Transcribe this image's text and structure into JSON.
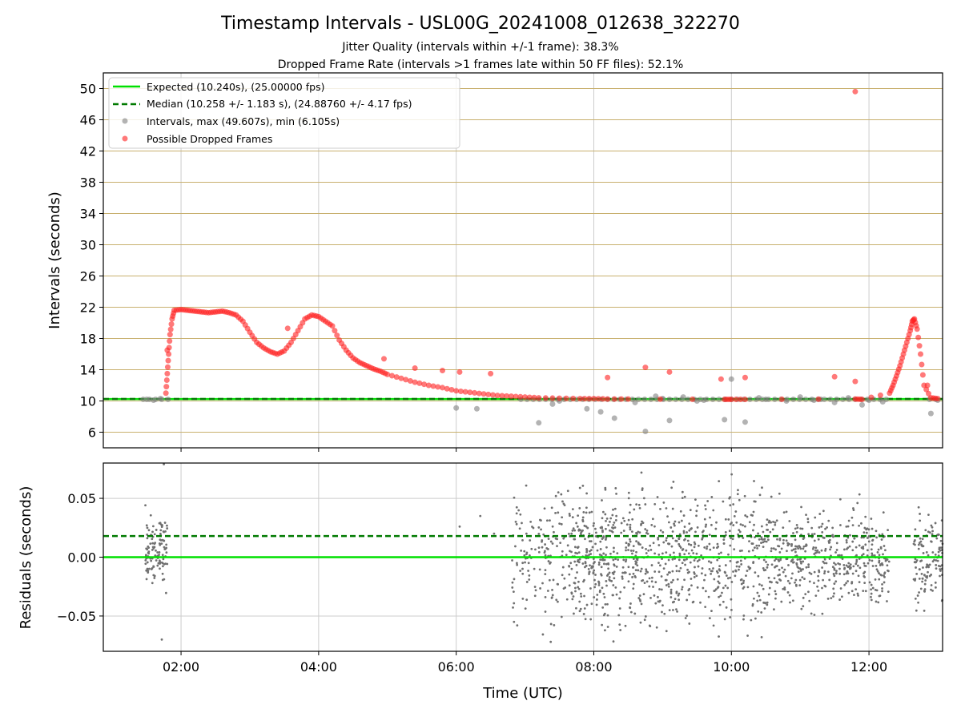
{
  "chart_data": [
    {
      "type": "scatter",
      "title": "Timestamp Intervals - USL00G_20241008_012638_322270",
      "subtitle_lines": [
        "Jitter Quality (intervals within +/-1 frame): 38.3%",
        "Dropped Frame Rate (intervals >1 frames late within 50 FF files): 52.1%"
      ],
      "ylabel": "Intervals (seconds)",
      "xlim_hours": [
        0.87,
        13.07
      ],
      "ylim": [
        4,
        52
      ],
      "ytick_values": [
        6,
        10,
        14,
        18,
        22,
        26,
        30,
        34,
        38,
        42,
        46,
        50
      ],
      "ytick_labels": [
        "6",
        "10",
        "14",
        "18",
        "22",
        "26",
        "30",
        "34",
        "38",
        "42",
        "46",
        "50"
      ],
      "grid": true,
      "horizontal_grid_color": "#c8b06e",
      "legend_position": "upper-left",
      "legend": [
        {
          "label": "Expected (10.240s), (25.00000 fps)",
          "style": "line",
          "color": "#00e000"
        },
        {
          "label": "Median (10.258 +/- 1.183 s), (24.88760 +/- 4.17 fps)",
          "style": "dashed",
          "color": "#007a00"
        },
        {
          "label": "Intervals, max (49.607s), min (6.105s)",
          "style": "marker",
          "color": "#808080"
        },
        {
          "label": "Possible Dropped Frames",
          "style": "marker",
          "color": "#ff2020"
        }
      ],
      "reference_lines": {
        "expected": 10.24,
        "median": 10.258
      },
      "series": [
        {
          "name": "Possible Dropped Frames",
          "color": "#ff2020",
          "x_hours": [
            1.78,
            1.8,
            1.82,
            1.84,
            1.87,
            1.9,
            2.0,
            2.1,
            2.2,
            2.3,
            2.4,
            2.5,
            2.6,
            2.7,
            2.8,
            2.9,
            3.0,
            3.1,
            3.2,
            3.3,
            3.4,
            3.5,
            3.6,
            3.7,
            3.8,
            3.9,
            4.0,
            4.1,
            4.2,
            4.3,
            4.4,
            4.5,
            4.6,
            4.7,
            4.8,
            4.9,
            5.0,
            5.2,
            5.4,
            5.6,
            5.8,
            6.0,
            6.2,
            6.4,
            6.6,
            6.8,
            7.0,
            7.2,
            7.5,
            7.8,
            8.0,
            8.2,
            8.5,
            9.9,
            10.0,
            10.2,
            11.8,
            11.9,
            12.3,
            12.35,
            12.4,
            12.45,
            12.5,
            12.55,
            12.6,
            12.63,
            12.66,
            12.7,
            12.75,
            12.8,
            12.9,
            13.0,
            1.8,
            3.55,
            4.95,
            5.4,
            5.8,
            6.05,
            6.5,
            8.2,
            8.75,
            9.1,
            9.85,
            10.2,
            11.5,
            11.8,
            12.85
          ],
          "y": [
            11.0,
            13.5,
            16.0,
            18.5,
            20.5,
            21.6,
            21.7,
            21.6,
            21.5,
            21.4,
            21.3,
            21.4,
            21.5,
            21.3,
            21.0,
            20.2,
            18.8,
            17.5,
            16.8,
            16.3,
            16.0,
            16.4,
            17.5,
            19.0,
            20.5,
            21.0,
            20.8,
            20.2,
            19.6,
            17.8,
            16.5,
            15.5,
            14.9,
            14.5,
            14.1,
            13.8,
            13.4,
            12.9,
            12.4,
            12.0,
            11.7,
            11.3,
            11.1,
            10.9,
            10.7,
            10.6,
            10.5,
            10.4,
            10.35,
            10.3,
            10.3,
            10.25,
            10.25,
            10.2,
            10.2,
            10.2,
            10.25,
            10.2,
            11.0,
            12.0,
            13.2,
            14.5,
            16.0,
            17.5,
            19.0,
            20.2,
            20.5,
            19.2,
            16.0,
            12.0,
            10.4,
            10.3,
            16.5,
            19.3,
            15.4,
            14.2,
            13.9,
            13.7,
            13.5,
            13.0,
            14.3,
            13.7,
            12.8,
            13.0,
            13.1,
            12.5,
            12.0
          ]
        },
        {
          "name": "Intervals, max (49.607s), min (6.105s)",
          "color": "#808080",
          "x_hours": [
            1.5,
            1.6,
            1.7,
            6.0,
            6.3,
            7.2,
            7.4,
            7.9,
            8.3,
            8.6,
            8.75,
            8.9,
            9.1,
            9.3,
            9.6,
            9.9,
            10.0,
            10.2,
            10.4,
            10.8,
            11.0,
            11.3,
            11.5,
            11.7,
            12.0,
            12.2,
            12.9,
            13.0,
            7.5,
            8.1,
            9.0,
            9.5,
            10.5,
            11.2,
            11.9
          ],
          "y": [
            10.2,
            10.1,
            10.3,
            9.1,
            9.0,
            7.2,
            9.6,
            9.0,
            7.8,
            9.8,
            6.1,
            10.6,
            7.5,
            10.5,
            10.1,
            7.6,
            12.8,
            7.3,
            10.4,
            10.0,
            10.5,
            10.2,
            9.8,
            10.4,
            10.1,
            9.9,
            8.4,
            10.1,
            10.0,
            8.6,
            10.3,
            10.0,
            10.2,
            10.1,
            9.5
          ]
        }
      ],
      "outlier": {
        "x_hour": 11.8,
        "y": 49.607
      }
    },
    {
      "type": "scatter",
      "xlabel": "Time (UTC)",
      "ylabel": "Residuals (seconds)",
      "xlim_hours": [
        0.87,
        13.07
      ],
      "ylim": [
        -0.08,
        0.08
      ],
      "ytick_values": [
        -0.05,
        0.0,
        0.05
      ],
      "ytick_labels": [
        "−0.05",
        "0.00",
        "0.05"
      ],
      "xtick_values": [
        2,
        4,
        6,
        8,
        10,
        12
      ],
      "xtick_labels": [
        "02:00",
        "04:00",
        "06:00",
        "08:00",
        "10:00",
        "12:00"
      ],
      "grid": true,
      "reference_lines": {
        "expected": 0.0,
        "median": 0.018
      },
      "point_color": "#707070",
      "clusters": [
        {
          "x_range": [
            1.48,
            1.8
          ],
          "y_range": [
            -0.04,
            0.05
          ],
          "count": 120
        },
        {
          "x_range": [
            6.8,
            7.6
          ],
          "y_range": [
            -0.08,
            0.08
          ],
          "count": 140
        },
        {
          "x_range": [
            7.6,
            8.6
          ],
          "y_range": [
            -0.08,
            0.08
          ],
          "count": 330
        },
        {
          "x_range": [
            8.6,
            10.6
          ],
          "y_range": [
            -0.08,
            0.08
          ],
          "count": 520
        },
        {
          "x_range": [
            10.6,
            12.3
          ],
          "y_range": [
            -0.06,
            0.06
          ],
          "count": 430
        },
        {
          "x_range": [
            12.65,
            13.07
          ],
          "y_range": [
            -0.06,
            0.05
          ],
          "count": 120
        }
      ],
      "sparse_points": [
        {
          "x": 1.72,
          "y": -0.07
        },
        {
          "x": 1.75,
          "y": 0.079
        },
        {
          "x": 6.05,
          "y": 0.026
        },
        {
          "x": 6.35,
          "y": 0.035
        },
        {
          "x": 6.55,
          "y": 0.02
        }
      ]
    }
  ]
}
